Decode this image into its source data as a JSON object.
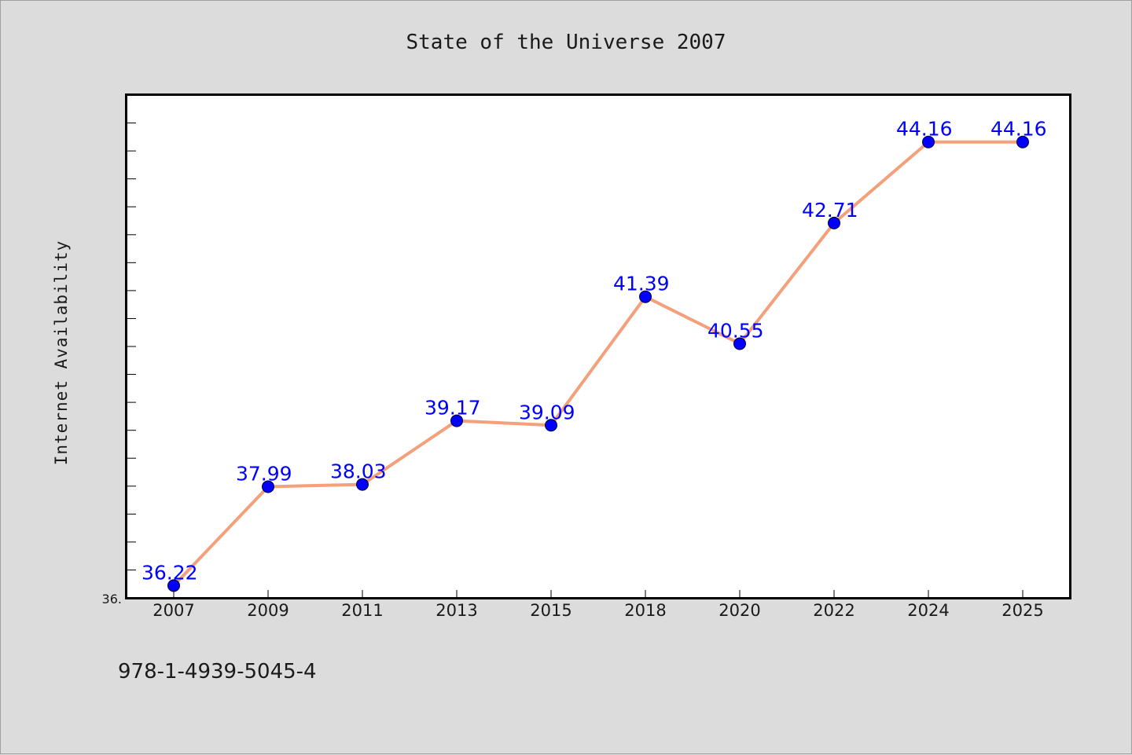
{
  "chart_data": {
    "type": "line",
    "title": "State of the Universe 2007",
    "xlabel": "",
    "ylabel": "Internet Availability",
    "categories": [
      "2007",
      "2009",
      "2011",
      "2013",
      "2015",
      "2018",
      "2020",
      "2022",
      "2024",
      "2025"
    ],
    "values": [
      36.22,
      37.99,
      38.03,
      39.17,
      39.09,
      41.39,
      40.55,
      42.71,
      44.16,
      44.16
    ],
    "data_labels": [
      "36.22",
      "37.99",
      "38.03",
      "39.17",
      "39.09",
      "41.39",
      "40.55",
      "42.71",
      "44.16",
      "44.16"
    ],
    "ylim": [
      36.0,
      45.0
    ],
    "y_tick_label": "36.",
    "grid": false,
    "legend": "none",
    "colors": {
      "line": "#f4a07a",
      "marker": "#0000ff",
      "label": "#0000ff"
    }
  },
  "footer": {
    "isbn": "978-1-4939-5045-4"
  }
}
